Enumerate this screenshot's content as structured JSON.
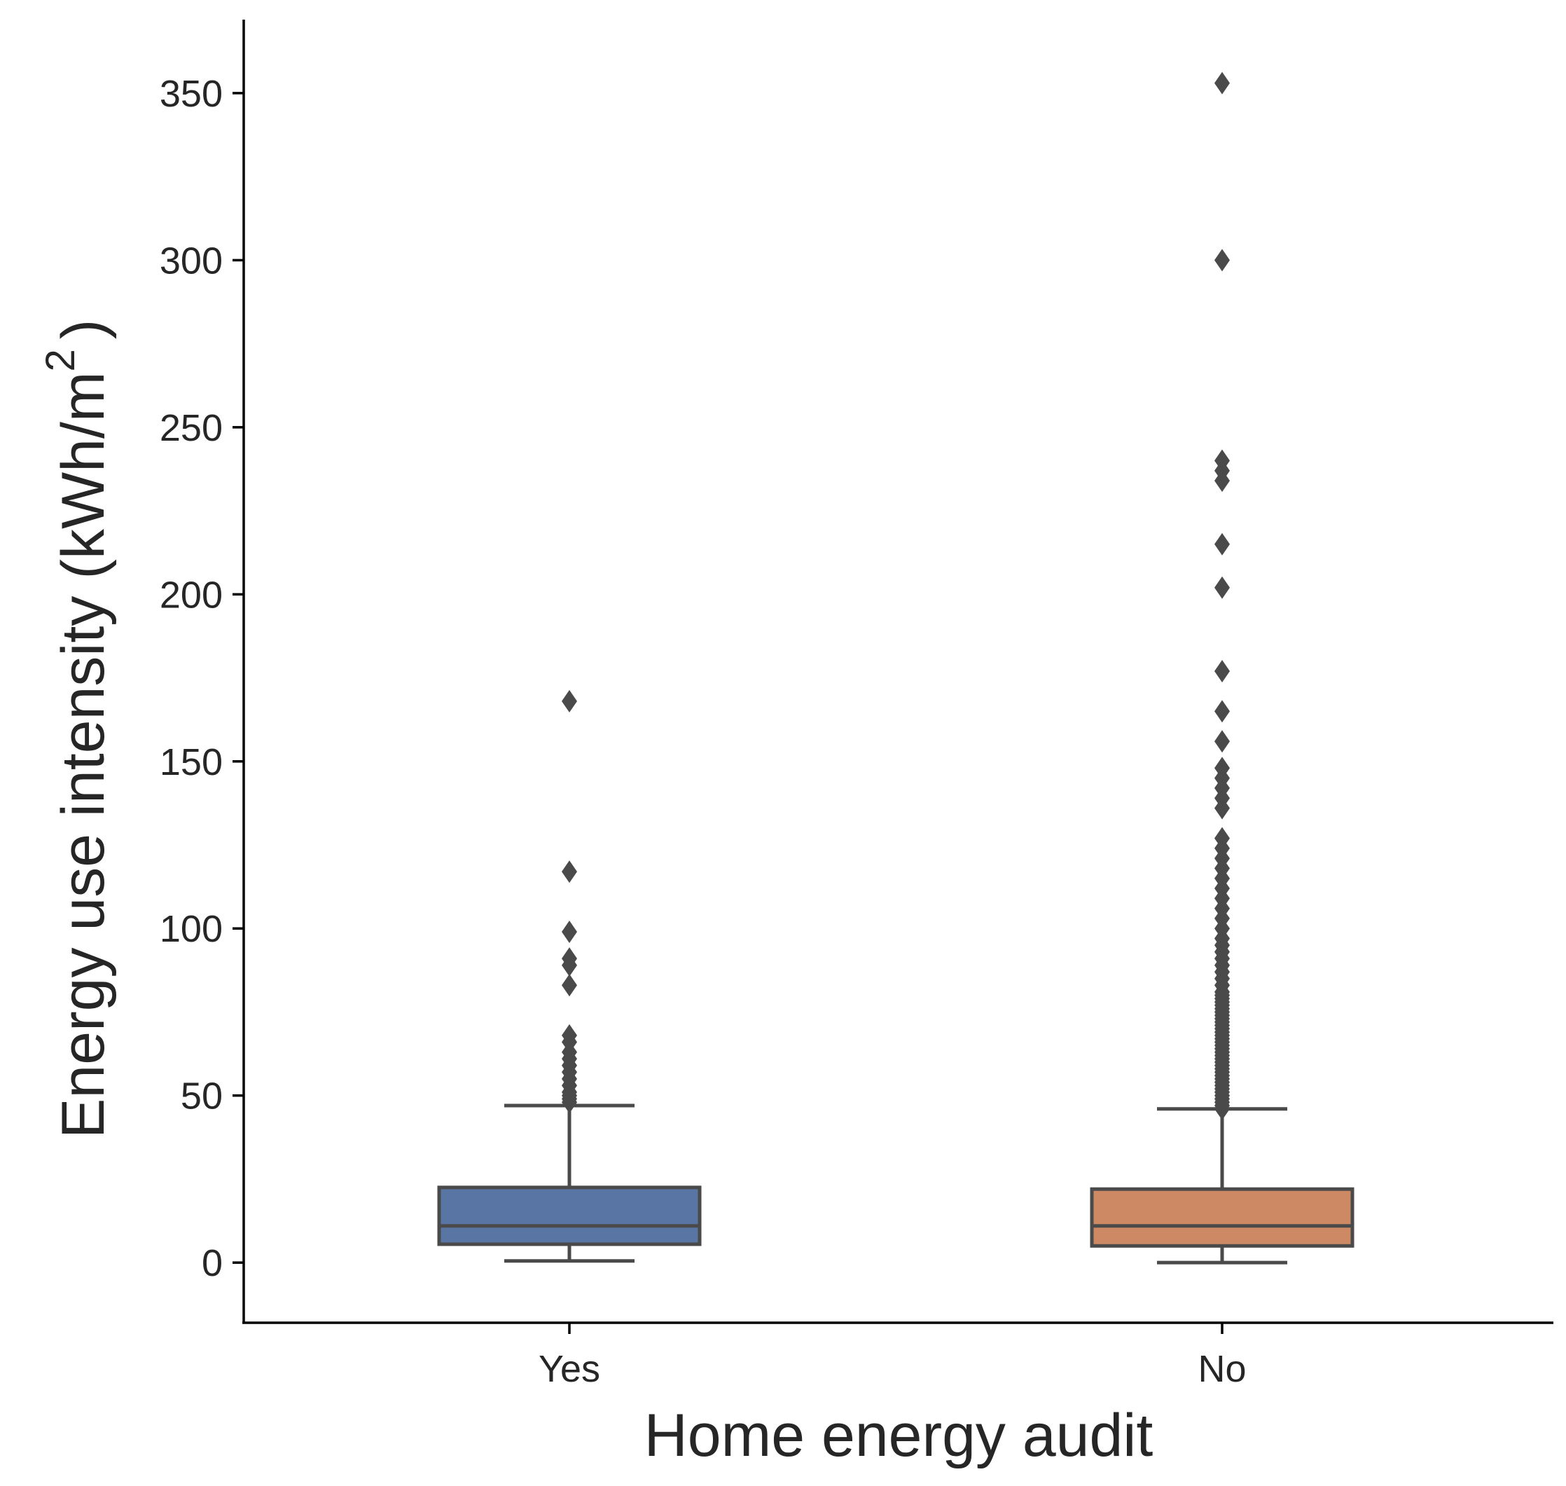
{
  "chart_data": {
    "type": "box",
    "xlabel": "Home energy audit",
    "ylabel": "Energy use intensity (kWh/m",
    "ylabel_superscript": "2",
    "ylabel_suffix": ")",
    "ylim": [
      -18,
      372
    ],
    "yticks": [
      0,
      50,
      100,
      150,
      200,
      250,
      300,
      350
    ],
    "categories": [
      "Yes",
      "No"
    ],
    "colors": [
      "#5975a4",
      "#cc8963"
    ],
    "edge_color": "#4a4a4a",
    "boxes": [
      {
        "category": "Yes",
        "whisker_low": 0.5,
        "q1": 5.5,
        "median": 11,
        "q3": 22.5,
        "whisker_high": 47,
        "fliers": [
          48,
          49,
          50,
          51,
          53,
          55,
          57,
          59,
          61,
          63,
          66,
          68,
          83,
          89,
          91,
          99,
          117,
          168
        ]
      },
      {
        "category": "No",
        "whisker_low": 0,
        "q1": 5,
        "median": 11,
        "q3": 22,
        "whisker_high": 46,
        "fliers": [
          46,
          47,
          48,
          49,
          50,
          51,
          52,
          53,
          54,
          55,
          56,
          57,
          58,
          59,
          60,
          61,
          62,
          63,
          64,
          65,
          66,
          67,
          68,
          69,
          70,
          71,
          72,
          73,
          74,
          75,
          76,
          77,
          78,
          79,
          80,
          81,
          83,
          85,
          87,
          89,
          91,
          93,
          95,
          97,
          100,
          103,
          106,
          109,
          112,
          115,
          118,
          121,
          124,
          127,
          136,
          139,
          142,
          145,
          148,
          156,
          165,
          177,
          202,
          215,
          234,
          237,
          240,
          300,
          353
        ]
      }
    ]
  }
}
